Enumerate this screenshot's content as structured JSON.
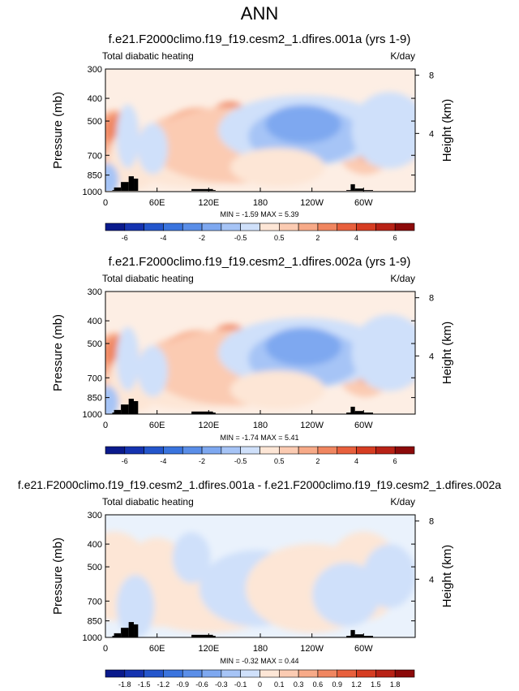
{
  "figure": {
    "title": "ANN"
  },
  "chart_data": [
    {
      "type": "heatmap",
      "title": "f.e21.F2000climo.f19_f19.cesm2_1.dfires.001a (yrs 1-9)",
      "left_label": "Total diabatic heating",
      "right_label": "K/day",
      "ylabel": "Pressure (mb)",
      "ylabel_right": "Height (km)",
      "yticks": [
        "300",
        "400",
        "500",
        "700",
        "850",
        "1000"
      ],
      "ytick_values": [
        300,
        400,
        500,
        700,
        850,
        1000
      ],
      "yticks_right": [
        "8",
        "4"
      ],
      "yticks_right_values": [
        8,
        4
      ],
      "xticks": [
        "0",
        "60E",
        "120E",
        "180",
        "120W",
        "60W"
      ],
      "xtick_values": [
        0,
        60,
        120,
        180,
        240,
        300
      ],
      "xlim": [
        0,
        360
      ],
      "ylim": [
        1000,
        300
      ],
      "stats": "MIN = -1.59  MAX =  5.39",
      "colorbar_labels": [
        "-6",
        "-4",
        "-2",
        "-0.5",
        "0.5",
        "2",
        "4",
        "6"
      ],
      "colorbar_label_positions": [
        1,
        3,
        5,
        7,
        9,
        11,
        13,
        15
      ],
      "colorbar_colors": [
        "#0a1a8c",
        "#1533b0",
        "#2456cc",
        "#3a74de",
        "#5a8ee8",
        "#7ea8f0",
        "#a6c4f6",
        "#cfe0fa",
        "#fde6d6",
        "#fbcbb2",
        "#f7aa88",
        "#f08660",
        "#e8603d",
        "#d63d22",
        "#b82216",
        "#8c0a0a"
      ]
    },
    {
      "type": "heatmap",
      "title": "f.e21.F2000climo.f19_f19.cesm2_1.dfires.002a (yrs 1-9)",
      "left_label": "Total diabatic heating",
      "right_label": "K/day",
      "ylabel": "Pressure (mb)",
      "ylabel_right": "Height (km)",
      "yticks": [
        "300",
        "400",
        "500",
        "700",
        "850",
        "1000"
      ],
      "ytick_values": [
        300,
        400,
        500,
        700,
        850,
        1000
      ],
      "yticks_right": [
        "8",
        "4"
      ],
      "yticks_right_values": [
        8,
        4
      ],
      "xticks": [
        "0",
        "60E",
        "120E",
        "180",
        "120W",
        "60W"
      ],
      "xtick_values": [
        0,
        60,
        120,
        180,
        240,
        300
      ],
      "xlim": [
        0,
        360
      ],
      "ylim": [
        1000,
        300
      ],
      "stats": "MIN = -1.74  MAX =  5.41",
      "colorbar_labels": [
        "-6",
        "-4",
        "-2",
        "-0.5",
        "0.5",
        "2",
        "4",
        "6"
      ],
      "colorbar_label_positions": [
        1,
        3,
        5,
        7,
        9,
        11,
        13,
        15
      ],
      "colorbar_colors": [
        "#0a1a8c",
        "#1533b0",
        "#2456cc",
        "#3a74de",
        "#5a8ee8",
        "#7ea8f0",
        "#a6c4f6",
        "#cfe0fa",
        "#fde6d6",
        "#fbcbb2",
        "#f7aa88",
        "#f08660",
        "#e8603d",
        "#d63d22",
        "#b82216",
        "#8c0a0a"
      ]
    },
    {
      "type": "heatmap",
      "title": "f.e21.F2000climo.f19_f19.cesm2_1.dfires.001a - f.e21.F2000climo.f19_f19.cesm2_1.dfires.002a",
      "left_label": "Total diabatic heating",
      "right_label": "K/day",
      "ylabel": "Pressure (mb)",
      "ylabel_right": "Height (km)",
      "yticks": [
        "300",
        "400",
        "500",
        "700",
        "850",
        "1000"
      ],
      "ytick_values": [
        300,
        400,
        500,
        700,
        850,
        1000
      ],
      "yticks_right": [
        "8",
        "4"
      ],
      "yticks_right_values": [
        8,
        4
      ],
      "xticks": [
        "0",
        "60E",
        "120E",
        "180",
        "120W",
        "60W"
      ],
      "xtick_values": [
        0,
        60,
        120,
        180,
        240,
        300
      ],
      "xlim": [
        0,
        360
      ],
      "ylim": [
        1000,
        300
      ],
      "stats": "MIN = -0.32  MAX =  0.44",
      "colorbar_labels": [
        "-1.8",
        "-1.5",
        "-1.2",
        "-0.9",
        "-0.6",
        "-0.3",
        "-0.1",
        "0",
        "0.1",
        "0.3",
        "0.6",
        "0.9",
        "1.2",
        "1.5",
        "1.8"
      ],
      "colorbar_label_positions": [
        1,
        2,
        3,
        4,
        5,
        6,
        7,
        8,
        9,
        10,
        11,
        12,
        13,
        14,
        15
      ],
      "colorbar_colors": [
        "#0a1a8c",
        "#1533b0",
        "#2456cc",
        "#3a74de",
        "#5a8ee8",
        "#7ea8f0",
        "#a6c4f6",
        "#cfe0fa",
        "#fde6d6",
        "#fbcbb2",
        "#f7aa88",
        "#f08660",
        "#e8603d",
        "#d63d22",
        "#b82216",
        "#8c0a0a"
      ]
    }
  ]
}
